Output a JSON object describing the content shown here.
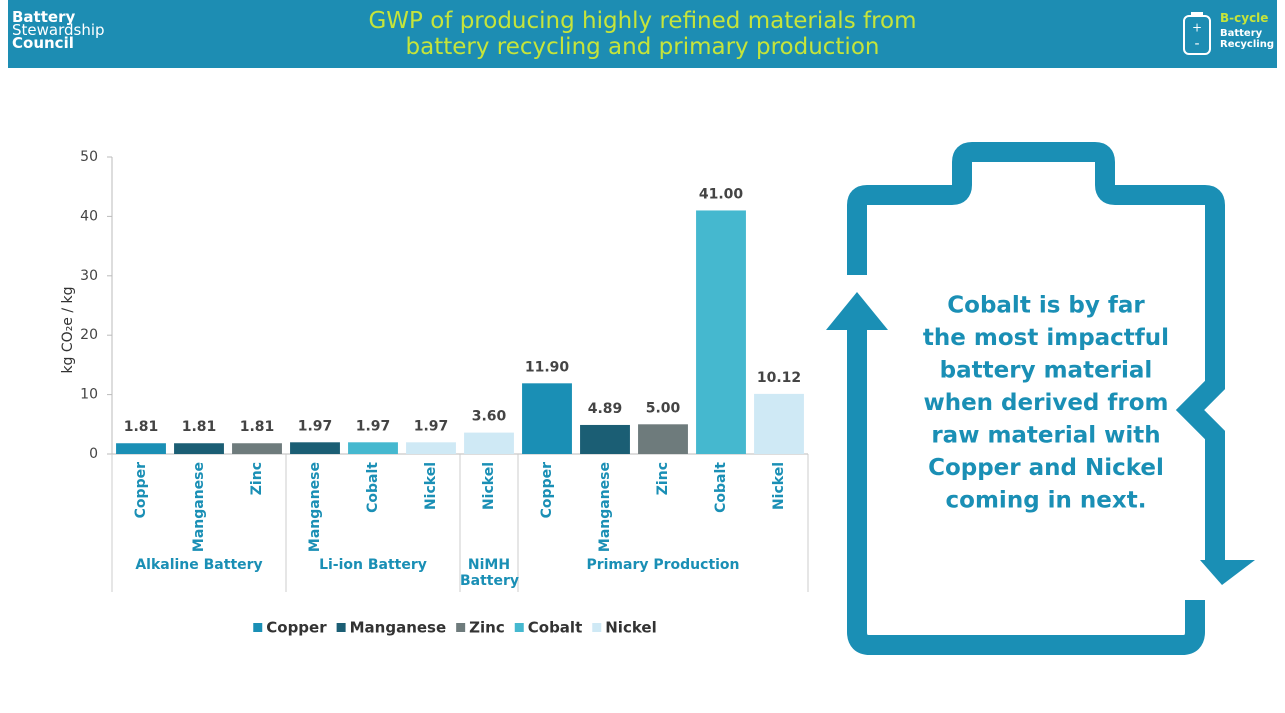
{
  "header": {
    "logo_left": [
      "Battery",
      "Stewardship",
      "Council"
    ],
    "title": [
      "GWP of producing highly refined materials from",
      "battery recycling and primary production"
    ],
    "logo_right": [
      "B-cycle",
      "Battery",
      "Recycling"
    ]
  },
  "chart_data": {
    "type": "bar",
    "y_label": "kg CO₂e / kg",
    "groups": [
      {
        "name": "Alkaline Battery",
        "categories": [
          "Copper",
          "Manganese",
          "Zinc"
        ]
      },
      {
        "name": "Li-ion Battery",
        "categories": [
          "Manganese",
          "Cobalt",
          "Nickel"
        ]
      },
      {
        "name": "NiMH Battery",
        "categories": [
          "Nickel"
        ]
      },
      {
        "name": "Primary Production",
        "categories": [
          "Copper",
          "Manganese",
          "Zinc",
          "Cobalt",
          "Nickel"
        ]
      }
    ],
    "series": [
      {
        "name": "Copper",
        "color": "#1a8fb5",
        "values": [
          1.81,
          null,
          null,
          null,
          null,
          null,
          null,
          11.9,
          null,
          null,
          null,
          null
        ],
        "value_labels": [
          "1.81",
          null,
          null,
          null,
          null,
          null,
          null,
          "11.90",
          null,
          null,
          null,
          null
        ]
      },
      {
        "name": "Manganese",
        "color": "#1b5e74",
        "values": [
          null,
          1.81,
          null,
          1.97,
          null,
          null,
          null,
          null,
          4.89,
          null,
          null,
          null
        ],
        "value_labels": [
          null,
          "1.81",
          null,
          "1.97",
          null,
          null,
          null,
          null,
          "4.89",
          null,
          null,
          null
        ]
      },
      {
        "name": "Zinc",
        "color": "#6e7b7c",
        "values": [
          null,
          null,
          1.81,
          null,
          null,
          null,
          null,
          null,
          null,
          5,
          null,
          null
        ],
        "value_labels": [
          null,
          null,
          "1.81",
          null,
          null,
          null,
          null,
          null,
          null,
          "5.00",
          null,
          null
        ]
      },
      {
        "name": "Cobalt",
        "color": "#45b8cf",
        "values": [
          null,
          null,
          null,
          null,
          1.97,
          null,
          null,
          null,
          null,
          null,
          41,
          null
        ],
        "value_labels": [
          null,
          null,
          null,
          null,
          "1.97",
          null,
          null,
          null,
          null,
          null,
          "41.00",
          null
        ]
      },
      {
        "name": "Nickel",
        "color": "#cfe9f5",
        "values": [
          null,
          null,
          null,
          null,
          null,
          1.97,
          3.6,
          null,
          null,
          null,
          null,
          10.12
        ],
        "value_labels": [
          null,
          null,
          null,
          null,
          null,
          "1.97",
          "3.60",
          null,
          null,
          null,
          null,
          "10.12"
        ]
      }
    ],
    "ylim": [
      0,
      50
    ],
    "yticks": [
      0,
      10,
      20,
      30,
      40,
      50
    ],
    "grid": false,
    "legend": "bottom"
  },
  "callout": [
    "Cobalt is by far",
    "the most impactful",
    "battery material",
    "when derived from",
    "raw material with",
    "Copper and Nickel",
    "coming in next."
  ]
}
